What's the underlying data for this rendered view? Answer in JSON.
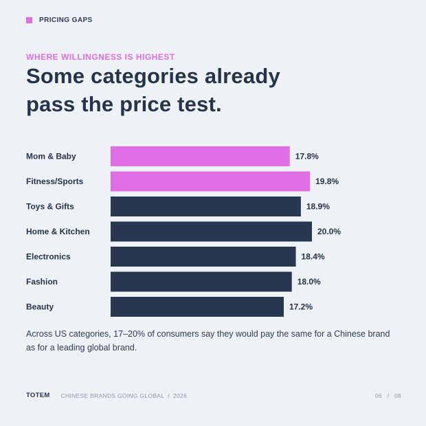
{
  "header": {
    "tag": "PRICING GAPS",
    "eyebrow": "WHERE WILLINGNESS IS HIGHEST",
    "headline_line1": "Some categories already",
    "headline_line2": "pass the price test."
  },
  "colors": {
    "highlight": "#e06fe6",
    "base": "#283750",
    "background": "#eef2f7",
    "text": "#263348"
  },
  "chart_data": {
    "type": "bar",
    "orientation": "horizontal",
    "categories": [
      "Mom & Baby",
      "Fitness/Sports",
      "Toys & Gifts",
      "Home & Kitchen",
      "Electronics",
      "Fashion",
      "Beauty"
    ],
    "values": [
      17.8,
      19.8,
      18.9,
      20.0,
      18.4,
      18.0,
      17.2
    ],
    "value_labels": [
      "17.8%",
      "19.8%",
      "18.9%",
      "20.0%",
      "18.4%",
      "18.0%",
      "17.2%"
    ],
    "highlighted": [
      true,
      true,
      false,
      false,
      false,
      false,
      false
    ],
    "xlim": [
      0,
      20.0
    ],
    "grid": false,
    "legend": "none"
  },
  "caption": "Across US categories, 17–20% of consumers say they would pay the same for a Chinese brand as for a leading global brand.",
  "footer": {
    "brand": "TOTEM",
    "series": "CHINESE BRANDS GOING GLOBAL",
    "separator": "/",
    "year": "2026",
    "page_current": "06",
    "page_total": "08"
  }
}
